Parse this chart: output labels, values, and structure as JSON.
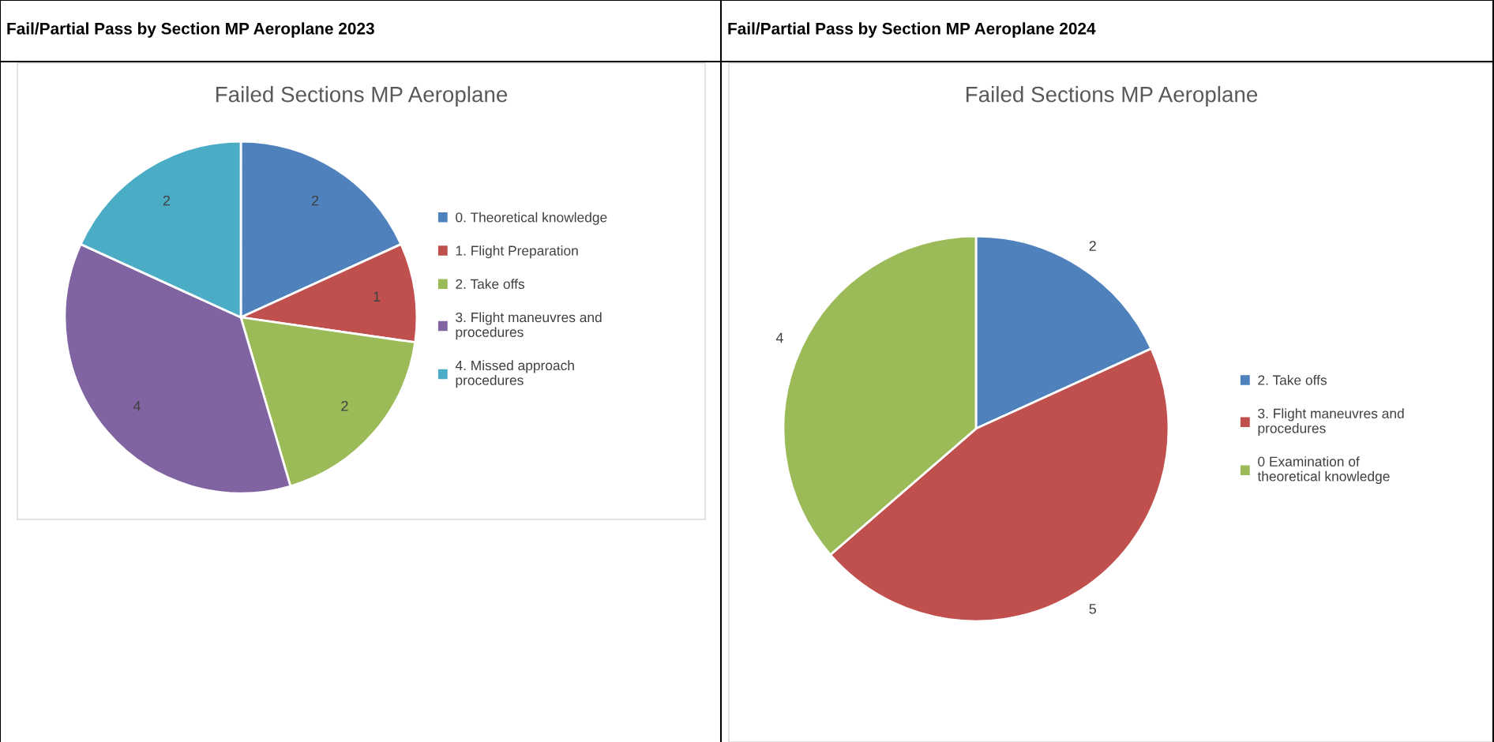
{
  "chart_data": [
    {
      "type": "pie",
      "title": "Fail/Partial Pass by Section MP Aeroplane 2023",
      "subtitle": "Failed Sections MP Aeroplane",
      "categories": [
        "0. Theoretical knowledge",
        "1. Flight Preparation",
        "2. Take offs",
        "3. Flight maneuvres and procedures",
        "4. Missed approach procedures"
      ],
      "values": [
        2,
        1,
        2,
        4,
        2
      ],
      "colors": [
        "#4f81bd",
        "#c0504d",
        "#9bbb59",
        "#8064a2",
        "#4bacc6"
      ],
      "data_labels": true,
      "legend": "right"
    },
    {
      "type": "pie",
      "title": "Fail/Partial Pass by Section MP Aeroplane 2024",
      "subtitle": "Failed Sections MP Aeroplane",
      "categories": [
        "2. Take offs",
        "3. Flight maneuvres and procedures",
        "0 Examination of theoretical knowledge"
      ],
      "values": [
        2,
        5,
        4
      ],
      "colors": [
        "#4f81bd",
        "#c0504d",
        "#9bbb59"
      ],
      "data_labels": true,
      "legend": "right"
    }
  ]
}
